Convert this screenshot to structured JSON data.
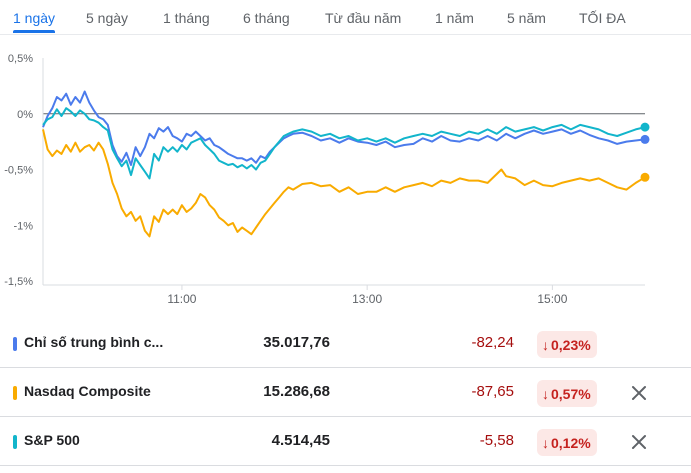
{
  "tabs": [
    {
      "label": "1 ngày",
      "active": true
    },
    {
      "label": "5 ngày",
      "active": false
    },
    {
      "label": "1 tháng",
      "active": false
    },
    {
      "label": "6 tháng",
      "active": false
    },
    {
      "label": "Từ đầu năm",
      "active": false
    },
    {
      "label": "1 năm",
      "active": false
    },
    {
      "label": "5 năm",
      "active": false
    },
    {
      "label": "TỐI ĐA",
      "active": false
    }
  ],
  "chart_data": {
    "type": "line",
    "y_ticks": [
      "0,5%",
      "0%",
      "-0,5%",
      "-1%",
      "-1,5%"
    ],
    "y_values": [
      0.5,
      0,
      -0.5,
      -1,
      -1.5
    ],
    "ylim": [
      -1.5,
      0.5
    ],
    "x_ticks": [
      "11:00",
      "13:00",
      "15:00"
    ],
    "x_tick_hours": [
      11,
      13,
      15
    ],
    "xlim": [
      9.5,
      16
    ],
    "baseline": 0,
    "grid": false,
    "series": [
      {
        "name": "Chỉ số trung bình c...",
        "color": "#4b7bec",
        "points": [
          [
            9.5,
            -0.12
          ],
          [
            9.55,
            -0.02
          ],
          [
            9.6,
            0.05
          ],
          [
            9.65,
            0.15
          ],
          [
            9.7,
            0.12
          ],
          [
            9.75,
            0.18
          ],
          [
            9.8,
            0.08
          ],
          [
            9.85,
            0.15
          ],
          [
            9.9,
            0.1
          ],
          [
            9.95,
            0.2
          ],
          [
            10.0,
            0.1
          ],
          [
            10.05,
            0.03
          ],
          [
            10.1,
            -0.03
          ],
          [
            10.15,
            -0.05
          ],
          [
            10.2,
            -0.1
          ],
          [
            10.25,
            -0.28
          ],
          [
            10.3,
            -0.38
          ],
          [
            10.35,
            -0.43
          ],
          [
            10.4,
            -0.35
          ],
          [
            10.45,
            -0.46
          ],
          [
            10.5,
            -0.3
          ],
          [
            10.55,
            -0.38
          ],
          [
            10.6,
            -0.3
          ],
          [
            10.65,
            -0.18
          ],
          [
            10.7,
            -0.22
          ],
          [
            10.75,
            -0.13
          ],
          [
            10.8,
            -0.16
          ],
          [
            10.85,
            -0.12
          ],
          [
            10.9,
            -0.2
          ],
          [
            10.95,
            -0.22
          ],
          [
            11.0,
            -0.25
          ],
          [
            11.05,
            -0.18
          ],
          [
            11.1,
            -0.2
          ],
          [
            11.15,
            -0.16
          ],
          [
            11.2,
            -0.2
          ],
          [
            11.25,
            -0.24
          ],
          [
            11.3,
            -0.22
          ],
          [
            11.35,
            -0.28
          ],
          [
            11.4,
            -0.3
          ],
          [
            11.45,
            -0.33
          ],
          [
            11.5,
            -0.36
          ],
          [
            11.55,
            -0.38
          ],
          [
            11.6,
            -0.4
          ],
          [
            11.65,
            -0.4
          ],
          [
            11.7,
            -0.42
          ],
          [
            11.75,
            -0.4
          ],
          [
            11.8,
            -0.44
          ],
          [
            11.85,
            -0.38
          ],
          [
            11.9,
            -0.4
          ],
          [
            11.95,
            -0.34
          ],
          [
            12.0,
            -0.3
          ],
          [
            12.05,
            -0.26
          ],
          [
            12.1,
            -0.22
          ],
          [
            12.15,
            -0.2
          ],
          [
            12.2,
            -0.18
          ],
          [
            12.3,
            -0.17
          ],
          [
            12.4,
            -0.2
          ],
          [
            12.5,
            -0.24
          ],
          [
            12.6,
            -0.22
          ],
          [
            12.7,
            -0.26
          ],
          [
            12.8,
            -0.22
          ],
          [
            12.9,
            -0.25
          ],
          [
            13.0,
            -0.26
          ],
          [
            13.1,
            -0.28
          ],
          [
            13.2,
            -0.25
          ],
          [
            13.3,
            -0.3
          ],
          [
            13.4,
            -0.28
          ],
          [
            13.5,
            -0.27
          ],
          [
            13.6,
            -0.22
          ],
          [
            13.7,
            -0.25
          ],
          [
            13.8,
            -0.2
          ],
          [
            13.9,
            -0.24
          ],
          [
            14.0,
            -0.25
          ],
          [
            14.1,
            -0.22
          ],
          [
            14.2,
            -0.24
          ],
          [
            14.3,
            -0.2
          ],
          [
            14.4,
            -0.24
          ],
          [
            14.5,
            -0.18
          ],
          [
            14.6,
            -0.22
          ],
          [
            14.7,
            -0.18
          ],
          [
            14.8,
            -0.15
          ],
          [
            14.9,
            -0.18
          ],
          [
            15.0,
            -0.16
          ],
          [
            15.1,
            -0.14
          ],
          [
            15.2,
            -0.18
          ],
          [
            15.3,
            -0.15
          ],
          [
            15.4,
            -0.19
          ],
          [
            15.5,
            -0.22
          ],
          [
            15.6,
            -0.24
          ],
          [
            15.7,
            -0.27
          ],
          [
            15.8,
            -0.25
          ],
          [
            15.9,
            -0.24
          ],
          [
            16.0,
            -0.23
          ]
        ]
      },
      {
        "name": "Nasdaq Composite",
        "color": "#f9ab00",
        "points": [
          [
            9.5,
            -0.14
          ],
          [
            9.55,
            -0.32
          ],
          [
            9.6,
            -0.38
          ],
          [
            9.65,
            -0.33
          ],
          [
            9.7,
            -0.36
          ],
          [
            9.75,
            -0.28
          ],
          [
            9.8,
            -0.34
          ],
          [
            9.85,
            -0.26
          ],
          [
            9.9,
            -0.34
          ],
          [
            9.95,
            -0.3
          ],
          [
            10.0,
            -0.28
          ],
          [
            10.05,
            -0.33
          ],
          [
            10.1,
            -0.26
          ],
          [
            10.15,
            -0.32
          ],
          [
            10.2,
            -0.45
          ],
          [
            10.25,
            -0.62
          ],
          [
            10.3,
            -0.72
          ],
          [
            10.35,
            -0.85
          ],
          [
            10.4,
            -0.92
          ],
          [
            10.45,
            -0.88
          ],
          [
            10.5,
            -0.96
          ],
          [
            10.55,
            -0.92
          ],
          [
            10.6,
            -1.05
          ],
          [
            10.65,
            -1.1
          ],
          [
            10.7,
            -0.92
          ],
          [
            10.75,
            -0.97
          ],
          [
            10.8,
            -0.86
          ],
          [
            10.85,
            -0.9
          ],
          [
            10.9,
            -0.86
          ],
          [
            10.95,
            -0.9
          ],
          [
            11.0,
            -0.82
          ],
          [
            11.05,
            -0.88
          ],
          [
            11.1,
            -0.85
          ],
          [
            11.15,
            -0.8
          ],
          [
            11.2,
            -0.72
          ],
          [
            11.25,
            -0.75
          ],
          [
            11.3,
            -0.82
          ],
          [
            11.35,
            -0.86
          ],
          [
            11.4,
            -0.93
          ],
          [
            11.45,
            -0.96
          ],
          [
            11.5,
            -1.0
          ],
          [
            11.55,
            -0.98
          ],
          [
            11.6,
            -1.06
          ],
          [
            11.65,
            -1.02
          ],
          [
            11.7,
            -1.05
          ],
          [
            11.75,
            -1.08
          ],
          [
            11.8,
            -1.02
          ],
          [
            11.85,
            -0.96
          ],
          [
            11.9,
            -0.9
          ],
          [
            11.95,
            -0.85
          ],
          [
            12.0,
            -0.8
          ],
          [
            12.05,
            -0.75
          ],
          [
            12.1,
            -0.7
          ],
          [
            12.15,
            -0.66
          ],
          [
            12.2,
            -0.68
          ],
          [
            12.3,
            -0.63
          ],
          [
            12.4,
            -0.62
          ],
          [
            12.5,
            -0.65
          ],
          [
            12.6,
            -0.64
          ],
          [
            12.7,
            -0.7
          ],
          [
            12.8,
            -0.66
          ],
          [
            12.9,
            -0.72
          ],
          [
            13.0,
            -0.7
          ],
          [
            13.1,
            -0.7
          ],
          [
            13.2,
            -0.66
          ],
          [
            13.3,
            -0.7
          ],
          [
            13.4,
            -0.66
          ],
          [
            13.5,
            -0.64
          ],
          [
            13.6,
            -0.62
          ],
          [
            13.7,
            -0.65
          ],
          [
            13.8,
            -0.6
          ],
          [
            13.9,
            -0.62
          ],
          [
            14.0,
            -0.58
          ],
          [
            14.1,
            -0.6
          ],
          [
            14.2,
            -0.6
          ],
          [
            14.3,
            -0.62
          ],
          [
            14.4,
            -0.54
          ],
          [
            14.45,
            -0.5
          ],
          [
            14.5,
            -0.56
          ],
          [
            14.6,
            -0.58
          ],
          [
            14.7,
            -0.64
          ],
          [
            14.8,
            -0.6
          ],
          [
            14.9,
            -0.64
          ],
          [
            15.0,
            -0.65
          ],
          [
            15.1,
            -0.62
          ],
          [
            15.2,
            -0.6
          ],
          [
            15.3,
            -0.58
          ],
          [
            15.4,
            -0.6
          ],
          [
            15.5,
            -0.58
          ],
          [
            15.6,
            -0.62
          ],
          [
            15.7,
            -0.66
          ],
          [
            15.8,
            -0.68
          ],
          [
            15.9,
            -0.62
          ],
          [
            16.0,
            -0.57
          ]
        ]
      },
      {
        "name": "S&P 500",
        "color": "#12b5cb",
        "points": [
          [
            9.5,
            -0.1
          ],
          [
            9.55,
            -0.05
          ],
          [
            9.6,
            -0.03
          ],
          [
            9.65,
            0.04
          ],
          [
            9.7,
            -0.02
          ],
          [
            9.75,
            0.05
          ],
          [
            9.8,
            0.02
          ],
          [
            9.85,
            -0.02
          ],
          [
            9.9,
            0.03
          ],
          [
            9.95,
            0.0
          ],
          [
            10.0,
            -0.05
          ],
          [
            10.05,
            -0.06
          ],
          [
            10.1,
            -0.08
          ],
          [
            10.15,
            -0.12
          ],
          [
            10.2,
            -0.15
          ],
          [
            10.25,
            -0.32
          ],
          [
            10.3,
            -0.4
          ],
          [
            10.35,
            -0.47
          ],
          [
            10.4,
            -0.42
          ],
          [
            10.45,
            -0.55
          ],
          [
            10.5,
            -0.4
          ],
          [
            10.55,
            -0.46
          ],
          [
            10.6,
            -0.52
          ],
          [
            10.65,
            -0.58
          ],
          [
            10.7,
            -0.36
          ],
          [
            10.75,
            -0.42
          ],
          [
            10.8,
            -0.3
          ],
          [
            10.85,
            -0.34
          ],
          [
            10.9,
            -0.3
          ],
          [
            10.95,
            -0.34
          ],
          [
            11.0,
            -0.28
          ],
          [
            11.05,
            -0.32
          ],
          [
            11.1,
            -0.26
          ],
          [
            11.15,
            -0.24
          ],
          [
            11.2,
            -0.22
          ],
          [
            11.25,
            -0.28
          ],
          [
            11.3,
            -0.32
          ],
          [
            11.35,
            -0.36
          ],
          [
            11.4,
            -0.42
          ],
          [
            11.45,
            -0.44
          ],
          [
            11.5,
            -0.46
          ],
          [
            11.55,
            -0.45
          ],
          [
            11.6,
            -0.48
          ],
          [
            11.65,
            -0.46
          ],
          [
            11.7,
            -0.49
          ],
          [
            11.75,
            -0.46
          ],
          [
            11.8,
            -0.5
          ],
          [
            11.85,
            -0.44
          ],
          [
            11.9,
            -0.42
          ],
          [
            11.95,
            -0.36
          ],
          [
            12.0,
            -0.3
          ],
          [
            12.05,
            -0.25
          ],
          [
            12.1,
            -0.2
          ],
          [
            12.15,
            -0.18
          ],
          [
            12.2,
            -0.16
          ],
          [
            12.3,
            -0.14
          ],
          [
            12.4,
            -0.16
          ],
          [
            12.5,
            -0.2
          ],
          [
            12.6,
            -0.18
          ],
          [
            12.7,
            -0.22
          ],
          [
            12.8,
            -0.2
          ],
          [
            12.9,
            -0.24
          ],
          [
            13.0,
            -0.22
          ],
          [
            13.1,
            -0.25
          ],
          [
            13.2,
            -0.22
          ],
          [
            13.3,
            -0.26
          ],
          [
            13.4,
            -0.22
          ],
          [
            13.5,
            -0.2
          ],
          [
            13.6,
            -0.18
          ],
          [
            13.7,
            -0.2
          ],
          [
            13.8,
            -0.16
          ],
          [
            13.9,
            -0.18
          ],
          [
            14.0,
            -0.2
          ],
          [
            14.1,
            -0.16
          ],
          [
            14.2,
            -0.18
          ],
          [
            14.3,
            -0.14
          ],
          [
            14.4,
            -0.18
          ],
          [
            14.5,
            -0.12
          ],
          [
            14.6,
            -0.16
          ],
          [
            14.7,
            -0.14
          ],
          [
            14.8,
            -0.12
          ],
          [
            14.9,
            -0.15
          ],
          [
            15.0,
            -0.12
          ],
          [
            15.1,
            -0.1
          ],
          [
            15.2,
            -0.14
          ],
          [
            15.3,
            -0.1
          ],
          [
            15.4,
            -0.12
          ],
          [
            15.5,
            -0.14
          ],
          [
            15.6,
            -0.18
          ],
          [
            15.7,
            -0.2
          ],
          [
            15.8,
            -0.17
          ],
          [
            15.9,
            -0.14
          ],
          [
            16.0,
            -0.12
          ]
        ]
      }
    ]
  },
  "rows": [
    {
      "name": "Chỉ số trung bình c...",
      "price": "35.017,76",
      "change": "-82,24",
      "percent": "0,23%",
      "arrow": "↓",
      "color": "#4b7bec",
      "removable": false
    },
    {
      "name": "Nasdaq Composite",
      "price": "15.286,68",
      "change": "-87,65",
      "percent": "0,57%",
      "arrow": "↓",
      "color": "#f9ab00",
      "removable": true
    },
    {
      "name": "S&P 500",
      "price": "4.514,45",
      "change": "-5,58",
      "percent": "0,12%",
      "arrow": "↓",
      "color": "#12b5cb",
      "removable": true
    }
  ],
  "icons": {
    "remove": "close-icon",
    "down": "arrow-down-icon"
  }
}
